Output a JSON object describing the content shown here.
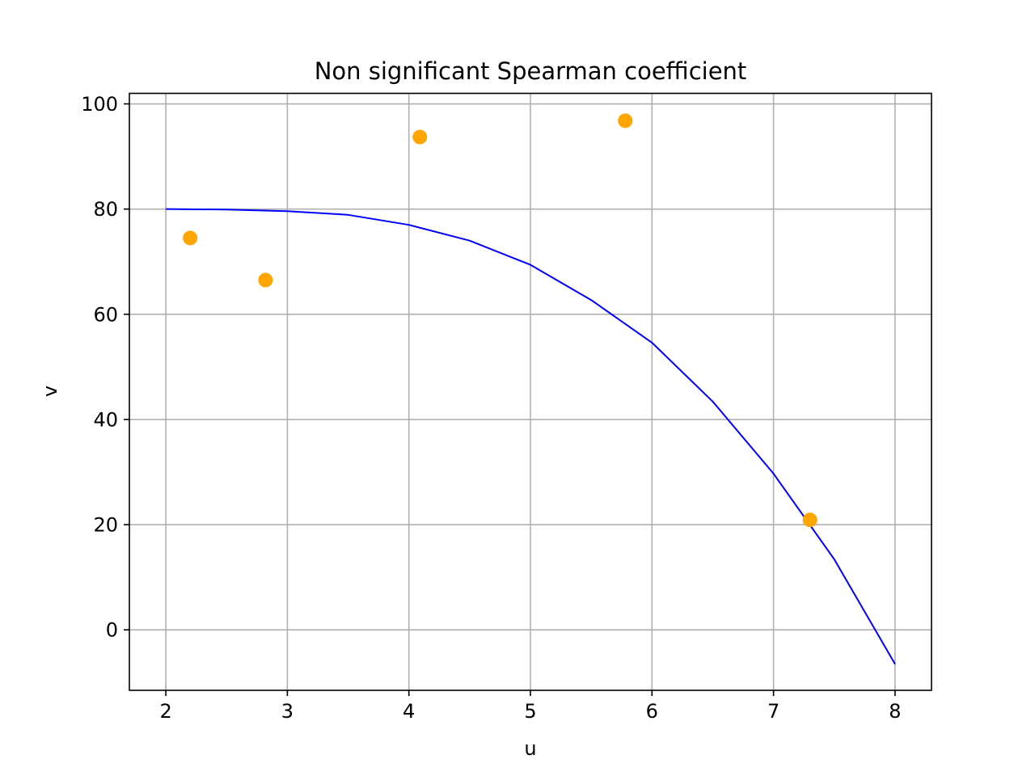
{
  "chart_data": {
    "type": "scatter",
    "title": "Non significant Spearman coefficient",
    "xlabel": "u",
    "ylabel": "v",
    "xlim": [
      1.7,
      8.3
    ],
    "ylim": [
      -11.5,
      102.0
    ],
    "xticks": [
      2,
      3,
      4,
      5,
      6,
      7,
      8
    ],
    "yticks": [
      0,
      20,
      40,
      60,
      80,
      100
    ],
    "grid": true,
    "legend": "none",
    "series": [
      {
        "kind": "scatter",
        "color": "#ffa500",
        "x": [
          2.2,
          2.82,
          4.09,
          5.78,
          7.3
        ],
        "y": [
          74.5,
          66.5,
          93.7,
          96.8,
          20.9
        ]
      },
      {
        "kind": "line",
        "color": "#0000ff",
        "x": [
          2.0,
          2.5,
          3.0,
          3.5,
          4.0,
          4.5,
          5.0,
          5.5,
          6.0,
          6.5,
          7.0,
          7.5,
          8.0
        ],
        "y": [
          80.0,
          79.9,
          79.6,
          78.9,
          77.0,
          74.0,
          69.4,
          62.7,
          54.6,
          43.4,
          29.7,
          13.4,
          -6.5
        ]
      }
    ]
  }
}
